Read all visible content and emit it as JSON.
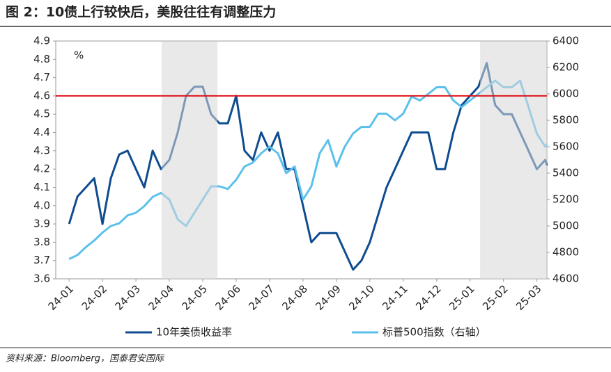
{
  "chart_data": {
    "type": "line",
    "title": "图 2：10债上行较快后，美股往往有调整压力",
    "y_unit": "%",
    "source": "资料来源：Bloomberg，国泰君安国际",
    "x": [
      0,
      0.25,
      0.5,
      0.75,
      1,
      1.25,
      1.5,
      1.75,
      2,
      2.25,
      2.5,
      2.75,
      3,
      3.25,
      3.5,
      3.75,
      4,
      4.25,
      4.5,
      4.75,
      5,
      5.25,
      5.5,
      5.75,
      6,
      6.25,
      6.5,
      6.75,
      7,
      7.25,
      7.5,
      7.75,
      8,
      8.25,
      8.5,
      8.75,
      9,
      9.25,
      9.5,
      9.75,
      10,
      10.25,
      10.5,
      10.75,
      11,
      11.25,
      11.5,
      11.75,
      12,
      12.25,
      12.5,
      12.75,
      13,
      13.25,
      13.5,
      13.75,
      14,
      14.25,
      14.3
    ],
    "xlim": [
      -0.4,
      14.3
    ],
    "xticks": [
      {
        "value": 0,
        "label": "24-01"
      },
      {
        "value": 1,
        "label": "24-02"
      },
      {
        "value": 2,
        "label": "24-03"
      },
      {
        "value": 3,
        "label": "24-04"
      },
      {
        "value": 4,
        "label": "24-05"
      },
      {
        "value": 5,
        "label": "24-06"
      },
      {
        "value": 6,
        "label": "24-07"
      },
      {
        "value": 7,
        "label": "24-08"
      },
      {
        "value": 8,
        "label": "24-09"
      },
      {
        "value": 9,
        "label": "24-10"
      },
      {
        "value": 10,
        "label": "24-11"
      },
      {
        "value": 11,
        "label": "24-12"
      },
      {
        "value": 12,
        "label": "25-01"
      },
      {
        "value": 13,
        "label": "25-02"
      },
      {
        "value": 14,
        "label": "25-03"
      }
    ],
    "ylim": [
      3.6,
      4.9
    ],
    "yticks": [
      3.6,
      3.7,
      3.8,
      3.9,
      {
        "value": 4,
        "label": "4.0"
      },
      4.1,
      4.2,
      4.3,
      4.4,
      4.5,
      4.6,
      4.7,
      4.8,
      4.9
    ],
    "y2lim": [
      4600,
      6400
    ],
    "y2ticks": [
      4600,
      4800,
      5000,
      5200,
      5400,
      5600,
      5800,
      6000,
      6200,
      6400
    ],
    "hline": 4.6,
    "hline_color": "#e0141e",
    "shaded": [
      [
        2.77,
        4.44
      ],
      [
        12.3,
        14.3
      ]
    ],
    "series": [
      {
        "name": "10年美债收益率",
        "color": "#0f4c8f",
        "values": [
          3.9,
          4.05,
          4.1,
          4.15,
          3.9,
          4.15,
          4.28,
          4.3,
          4.2,
          4.1,
          4.3,
          4.2,
          4.25,
          4.4,
          4.6,
          4.65,
          4.65,
          4.5,
          4.45,
          4.45,
          4.6,
          4.3,
          4.25,
          4.4,
          4.3,
          4.4,
          4.2,
          4.2,
          4.0,
          3.8,
          3.85,
          3.85,
          3.85,
          3.75,
          3.65,
          3.7,
          3.8,
          3.95,
          4.1,
          4.2,
          4.3,
          4.4,
          4.4,
          4.4,
          4.2,
          4.2,
          4.4,
          4.55,
          4.6,
          4.65,
          4.78,
          4.55,
          4.5,
          4.5,
          4.4,
          4.3,
          4.2,
          4.25,
          4.22
        ]
      },
      {
        "name": "标普500指数（右轴）",
        "color": "#5bc0eb",
        "axis": "y2",
        "values": [
          4750,
          4780,
          4840,
          4890,
          4950,
          5000,
          5020,
          5080,
          5100,
          5150,
          5220,
          5250,
          5200,
          5050,
          5000,
          5100,
          5200,
          5300,
          5300,
          5280,
          5350,
          5450,
          5480,
          5550,
          5600,
          5550,
          5400,
          5450,
          5200,
          5300,
          5550,
          5650,
          5450,
          5600,
          5700,
          5750,
          5750,
          5850,
          5850,
          5800,
          5850,
          5980,
          5950,
          6000,
          6050,
          6050,
          5950,
          5900,
          5950,
          6000,
          6050,
          6100,
          6050,
          6050,
          6100,
          5900,
          5700,
          5600,
          5620
        ]
      }
    ]
  }
}
